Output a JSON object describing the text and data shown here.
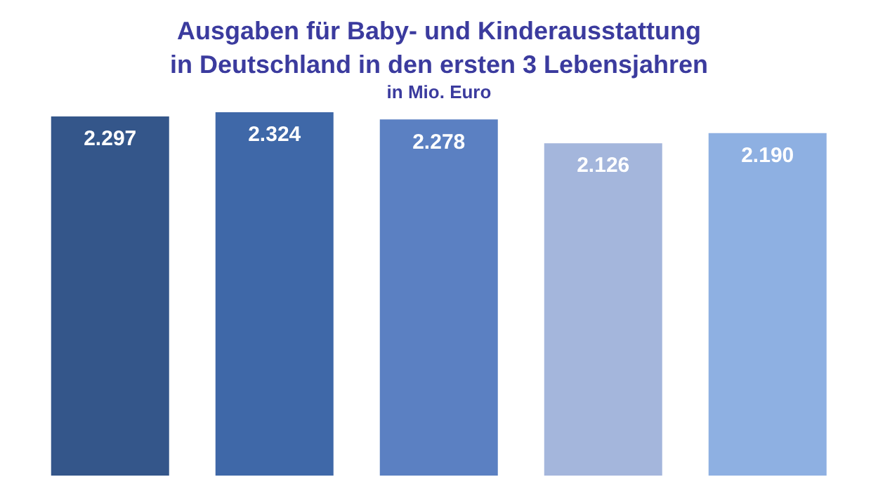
{
  "chart_data": {
    "type": "bar",
    "title": "Ausgaben für Baby- und Kinderausstattung\nin Deutschland in den ersten 3 Lebensjahren",
    "subtitle": "in Mio. Euro",
    "categories": [
      null,
      null,
      null,
      null,
      null
    ],
    "values": [
      2297,
      2324,
      2278,
      2126,
      2190
    ],
    "value_labels": [
      "2.297",
      "2.324",
      "2.278",
      "2.126",
      "2.190"
    ],
    "colors": [
      "#34568a",
      "#3f68a8",
      "#5b80c2",
      "#a4b6dc",
      "#8eb0e2"
    ]
  }
}
